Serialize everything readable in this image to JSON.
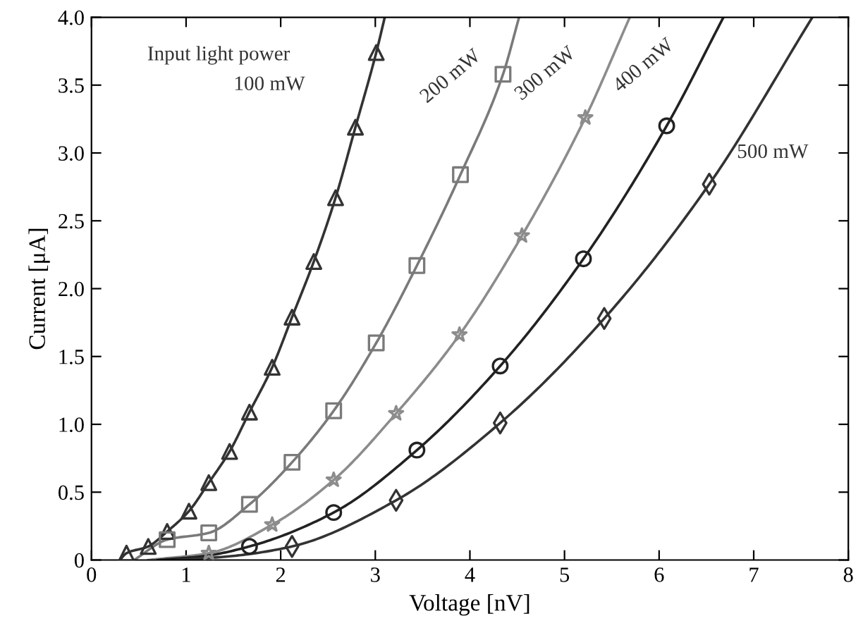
{
  "chart_data": {
    "type": "line",
    "xlabel": "Voltage [nV]",
    "ylabel": "Current [μA]",
    "xlim": [
      0,
      8
    ],
    "ylim": [
      0,
      4.0
    ],
    "xticks": [
      0,
      1,
      2,
      3,
      4,
      5,
      6,
      7,
      8
    ],
    "yticks": [
      {
        "value": 0,
        "label": "0"
      },
      {
        "value": 0.5,
        "label": "0.5"
      },
      {
        "value": 1.0,
        "label": "1.0"
      },
      {
        "value": 1.5,
        "label": "1.5"
      },
      {
        "value": 2.0,
        "label": "2.0"
      },
      {
        "value": 2.5,
        "label": "2.5"
      },
      {
        "value": 3.0,
        "label": "3.0"
      },
      {
        "value": 3.5,
        "label": "3.5"
      },
      {
        "value": 4.0,
        "label": "4.0"
      }
    ],
    "grid": false,
    "series": [
      {
        "marker": "none",
        "color": "#333333",
        "x": [
          0.3,
          0.37,
          0.6,
          0.8,
          1.03,
          1.24,
          1.46,
          1.67,
          1.91,
          2.12,
          2.35,
          2.58,
          2.79,
          3.01,
          3.1
        ],
        "values": [
          0,
          0.05,
          0.1,
          0.21,
          0.36,
          0.57,
          0.8,
          1.09,
          1.42,
          1.79,
          2.2,
          2.67,
          3.19,
          3.74,
          4.0
        ]
      },
      {
        "type": "scatter",
        "marker": "triangle",
        "color": "#333333",
        "x": [
          0.37,
          0.6,
          0.8,
          1.03,
          1.24,
          1.46,
          1.67,
          1.91,
          2.12,
          2.35,
          2.58,
          2.79,
          3.01
        ],
        "values": [
          0.05,
          0.1,
          0.21,
          0.36,
          0.57,
          0.8,
          1.09,
          1.42,
          1.79,
          2.2,
          2.67,
          3.19,
          3.74
        ]
      },
      {
        "marker": "none",
        "color": "#7a7a7a",
        "x": [
          0.45,
          0.8,
          1.24,
          1.67,
          2.12,
          2.56,
          3.01,
          3.44,
          3.9,
          4.35,
          4.52
        ],
        "values": [
          0,
          0.15,
          0.2,
          0.41,
          0.72,
          1.1,
          1.6,
          2.17,
          2.84,
          3.58,
          4.0
        ]
      },
      {
        "type": "scatter",
        "marker": "square",
        "color": "#7a7a7a",
        "x": [
          0.8,
          1.24,
          1.67,
          2.12,
          2.56,
          3.01,
          3.44,
          3.9,
          4.35
        ],
        "values": [
          0.15,
          0.2,
          0.41,
          0.72,
          1.1,
          1.6,
          2.17,
          2.84,
          3.58
        ]
      },
      {
        "marker": "none",
        "color": "#8c8c8c",
        "x": [
          0.6,
          1.24,
          1.91,
          2.56,
          3.22,
          3.89,
          4.55,
          5.22,
          5.69
        ],
        "values": [
          0,
          0.05,
          0.26,
          0.59,
          1.08,
          1.66,
          2.39,
          3.26,
          4.0
        ]
      },
      {
        "type": "scatter",
        "marker": "star",
        "color": "#8c8c8c",
        "x": [
          1.24,
          1.91,
          2.56,
          3.22,
          3.89,
          4.55,
          5.22
        ],
        "values": [
          0.05,
          0.26,
          0.59,
          1.08,
          1.66,
          2.39,
          3.26
        ]
      },
      {
        "marker": "none",
        "color": "#222222",
        "x": [
          0.7,
          1.2,
          1.67,
          2.56,
          3.44,
          4.32,
          5.2,
          6.08,
          6.68
        ],
        "values": [
          0,
          0.03,
          0.1,
          0.35,
          0.81,
          1.43,
          2.22,
          3.2,
          4.0
        ]
      },
      {
        "type": "scatter",
        "marker": "circle",
        "color": "#222222",
        "x": [
          1.67,
          2.56,
          3.44,
          4.32,
          5.2,
          6.08
        ],
        "values": [
          0.1,
          0.35,
          0.81,
          1.43,
          2.22,
          3.2
        ]
      },
      {
        "marker": "none",
        "color": "#333333",
        "x": [
          0.9,
          1.5,
          2.12,
          3.22,
          4.32,
          5.42,
          6.53,
          7.62
        ],
        "values": [
          0,
          0.03,
          0.1,
          0.44,
          1.01,
          1.78,
          2.77,
          4.0
        ]
      },
      {
        "type": "scatter",
        "marker": "diamond",
        "color": "#333333",
        "x": [
          2.12,
          3.22,
          4.32,
          5.42,
          6.53
        ],
        "values": [
          0.1,
          0.44,
          1.01,
          1.78,
          2.77
        ]
      }
    ],
    "annotations": [
      "Input light power",
      "100 mW",
      "200 mW",
      "300 mW",
      "400 mW",
      "500 mW"
    ]
  }
}
